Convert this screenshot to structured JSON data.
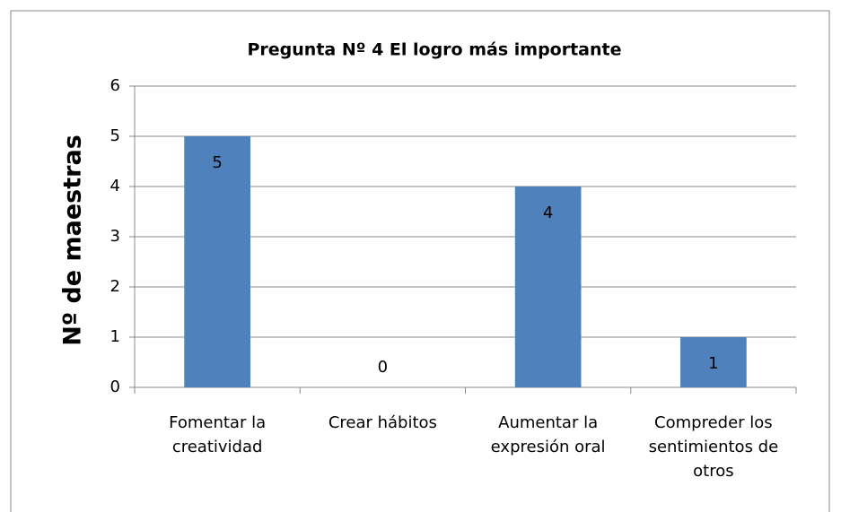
{
  "chart_data": {
    "type": "bar",
    "title": "Pregunta Nº 4 El logro más importante",
    "y_label": "Nº de maestras",
    "categories": [
      "Fomentar la creatividad",
      "Crear hábitos",
      "Aumentar la expresión oral",
      "Compreder los sentimientos de otros"
    ],
    "values": [
      5,
      0,
      4,
      1
    ],
    "color": "#4f81bd",
    "ylim": [
      0,
      6
    ],
    "yticks": [
      0,
      1,
      2,
      3,
      4,
      5,
      6
    ],
    "grid": true,
    "data_labels": true
  }
}
